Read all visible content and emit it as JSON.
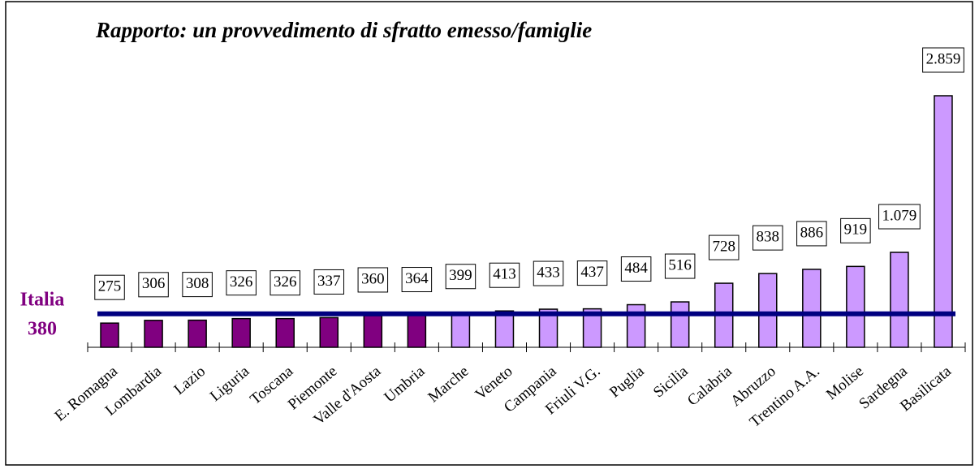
{
  "chart_data": {
    "type": "bar",
    "title": "Rapporto: un provvedimento di sfratto emesso/famiglie",
    "categories": [
      "E. Romagna",
      "Lombardia",
      "Lazio",
      "Liguria",
      "Toscana",
      "Piemonte",
      "Valle d'Aosta",
      "Umbria",
      "Marche",
      "Veneto",
      "Campania",
      "Friuli V.G.",
      "Puglia",
      "Sicilia",
      "Calabria",
      "Abruzzo",
      "Trentino A.A.",
      "Molise",
      "Sardegna",
      "Basilicata"
    ],
    "values": [
      275,
      306,
      308,
      326,
      326,
      337,
      360,
      364,
      399,
      413,
      433,
      437,
      484,
      516,
      728,
      838,
      886,
      919,
      1079,
      2859
    ],
    "value_labels": [
      "275",
      "306",
      "308",
      "326",
      "326",
      "337",
      "360",
      "364",
      "399",
      "413",
      "433",
      "437",
      "484",
      "516",
      "728",
      "838",
      "886",
      "919",
      "1.079",
      "2.859"
    ],
    "colors": [
      "#800080",
      "#800080",
      "#800080",
      "#800080",
      "#800080",
      "#800080",
      "#800080",
      "#800080",
      "#cc99ff",
      "#cc99ff",
      "#cc99ff",
      "#cc99ff",
      "#cc99ff",
      "#cc99ff",
      "#cc99ff",
      "#cc99ff",
      "#cc99ff",
      "#cc99ff",
      "#cc99ff",
      "#cc99ff"
    ],
    "reference": {
      "label": "Italia",
      "value": 380,
      "color": "#000080",
      "label_color": "#800080"
    }
  }
}
